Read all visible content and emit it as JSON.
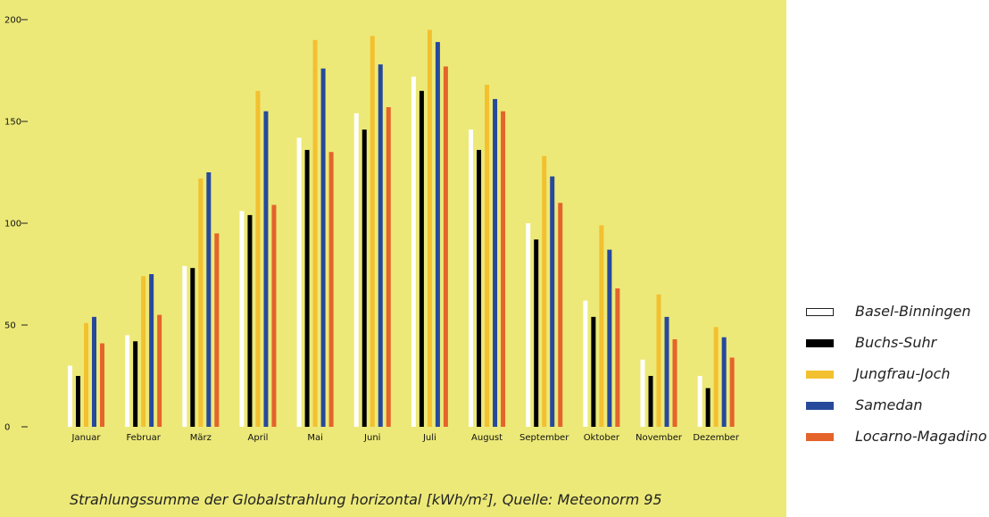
{
  "chart_data": {
    "type": "bar",
    "title": "",
    "xlabel": "",
    "ylabel": "",
    "ylim": [
      0,
      200
    ],
    "yticks": [
      0,
      50,
      100,
      150,
      200
    ],
    "grid": false,
    "legend_position": "right",
    "background_color": "#ece978",
    "caption": "Strahlungssumme der Globalstrahlung horizontal [kWh/m²], Quelle: Meteonorm 95",
    "categories": [
      "Januar",
      "Februar",
      "März",
      "April",
      "Mai",
      "Juni",
      "Juli",
      "August",
      "September",
      "Oktober",
      "November",
      "Dezember"
    ],
    "series": [
      {
        "name": "Basel-Binningen",
        "color": "#ffffff",
        "values": [
          30,
          45,
          79,
          106,
          142,
          154,
          172,
          146,
          100,
          62,
          33,
          25
        ]
      },
      {
        "name": "Buchs-Suhr",
        "color": "#000000",
        "values": [
          25,
          42,
          78,
          104,
          136,
          146,
          165,
          136,
          92,
          54,
          25,
          19
        ]
      },
      {
        "name": "Jungfrau-Joch",
        "color": "#f3c030",
        "values": [
          51,
          74,
          122,
          165,
          190,
          192,
          195,
          168,
          133,
          99,
          65,
          49
        ]
      },
      {
        "name": "Samedan",
        "color": "#27499c",
        "values": [
          54,
          75,
          125,
          155,
          176,
          178,
          189,
          161,
          123,
          87,
          54,
          44
        ]
      },
      {
        "name": "Locarno-Magadino",
        "color": "#e4642b",
        "values": [
          41,
          55,
          95,
          109,
          135,
          157,
          177,
          155,
          110,
          68,
          43,
          34
        ]
      }
    ]
  }
}
